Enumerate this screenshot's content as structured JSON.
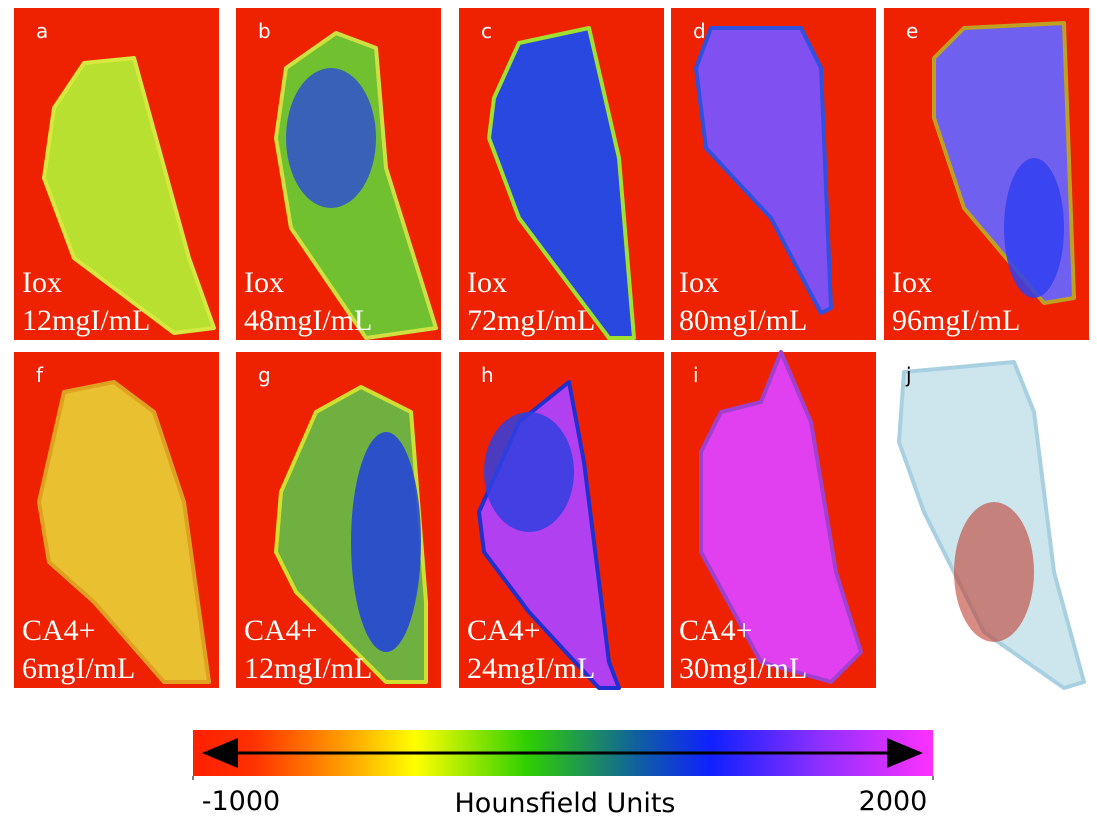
{
  "panels": [
    {
      "letter": "a",
      "agent": "Iox",
      "concentration": "12mgI/mL"
    },
    {
      "letter": "b",
      "agent": "Iox",
      "concentration": "48mgI/mL"
    },
    {
      "letter": "c",
      "agent": "Iox",
      "concentration": "72mgI/mL"
    },
    {
      "letter": "d",
      "agent": "Iox",
      "concentration": "80mgI/mL"
    },
    {
      "letter": "e",
      "agent": "Iox",
      "concentration": "96mgI/mL"
    },
    {
      "letter": "f",
      "agent": "CA4+",
      "concentration": "6mgI/mL"
    },
    {
      "letter": "g",
      "agent": "CA4+",
      "concentration": "12mgI/mL"
    },
    {
      "letter": "h",
      "agent": "CA4+",
      "concentration": "24mgI/mL"
    },
    {
      "letter": "i",
      "agent": "CA4+",
      "concentration": "30mgI/mL"
    },
    {
      "letter": "j"
    }
  ],
  "colorbar": {
    "label": "Hounsfield Units",
    "lim": [
      -1000,
      2000
    ],
    "ticks": [
      -1000,
      2000
    ]
  }
}
